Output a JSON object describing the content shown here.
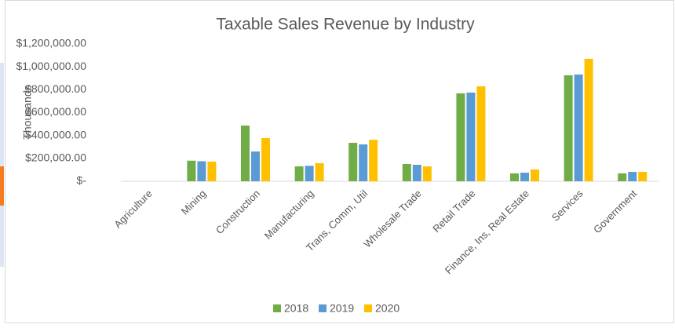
{
  "chart_data": {
    "type": "bar",
    "title": "Taxable Sales Revenue by Industry",
    "y_label": "Thousands",
    "categories": [
      "Agriculture",
      "Mining",
      "Construction",
      "Manufacturing",
      "Trans, Comm, Util",
      "Wholesale Trade",
      "Retail Trade",
      "Finance, Ins, Real Estate",
      "Services",
      "Government"
    ],
    "series": [
      {
        "name": "2018",
        "color": "#70ad47",
        "values": [
          0,
          180000,
          487000,
          130000,
          336000,
          151000,
          768000,
          69000,
          926000,
          69000
        ]
      },
      {
        "name": "2019",
        "color": "#5b9bd5",
        "values": [
          0,
          175000,
          260000,
          135000,
          322000,
          144000,
          775000,
          75000,
          933000,
          82000
        ]
      },
      {
        "name": "2020",
        "color": "#ffc000",
        "values": [
          0,
          172000,
          377000,
          158000,
          363000,
          130000,
          830000,
          103000,
          1070000,
          82000
        ]
      }
    ],
    "ylim": [
      0,
      1200000
    ],
    "yticks": [
      {
        "value": 0,
        "label": "$-"
      },
      {
        "value": 200000,
        "label": "$200,000.00"
      },
      {
        "value": 400000,
        "label": "$400,000.00"
      },
      {
        "value": 600000,
        "label": "$600,000.00"
      },
      {
        "value": 800000,
        "label": "$800,000.00"
      },
      {
        "value": 1000000,
        "label": "$1,000,000.00"
      },
      {
        "value": 1200000,
        "label": "$1,200,000.00"
      }
    ],
    "grid": false,
    "legend": "bottom"
  }
}
